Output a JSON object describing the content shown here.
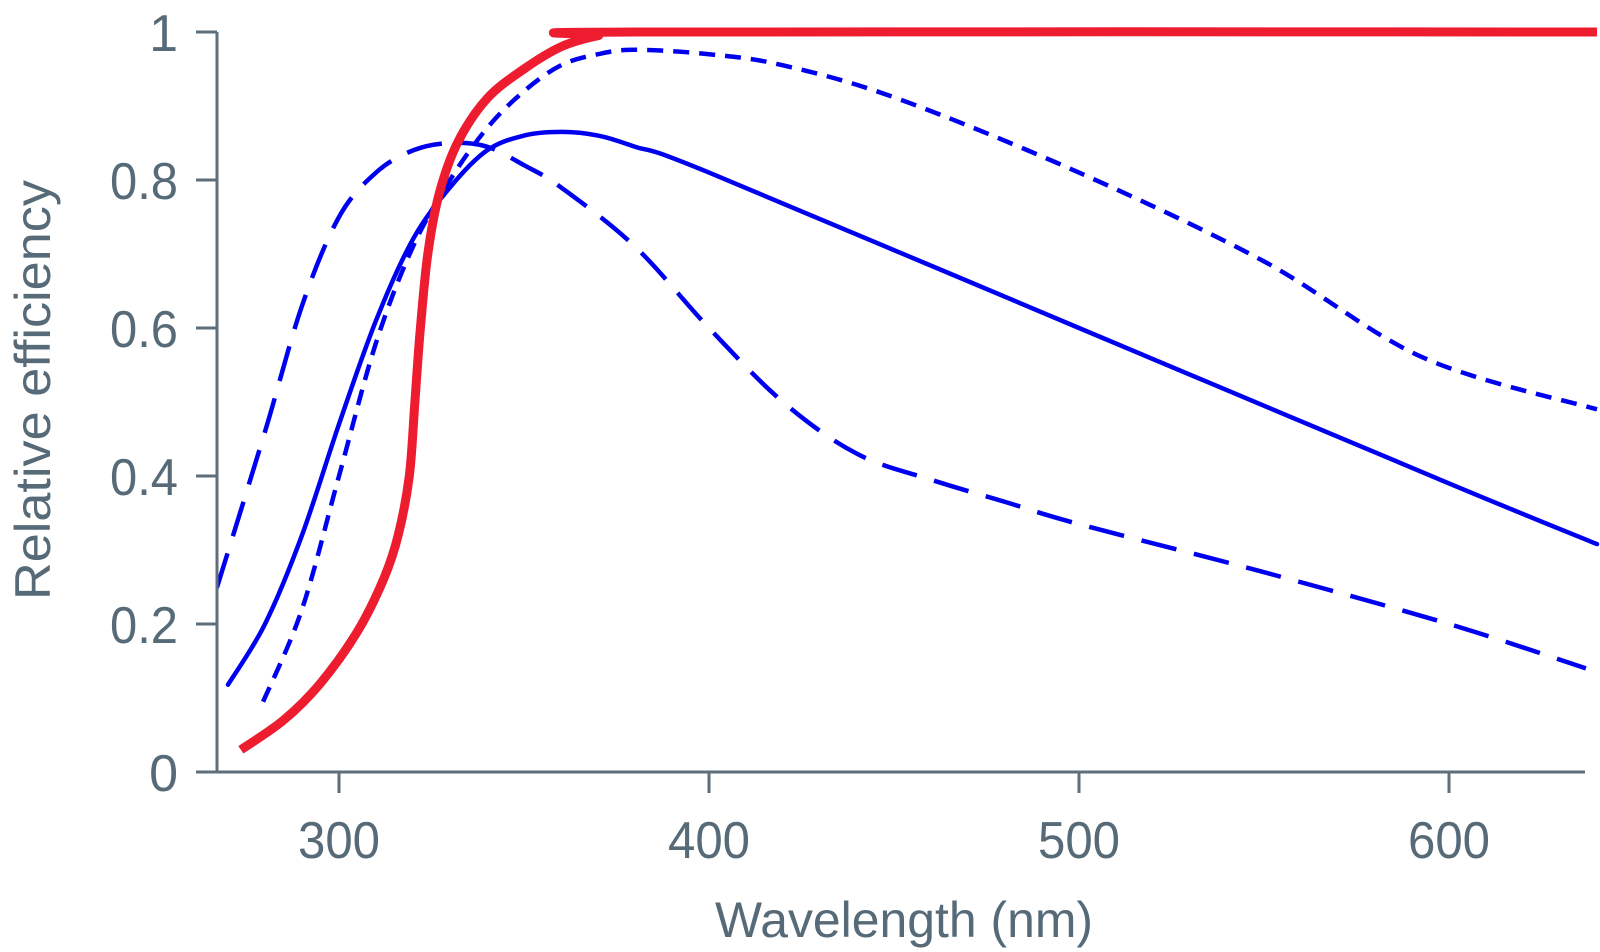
{
  "chart_data": {
    "type": "line",
    "title": "",
    "xlabel": "Wavelength (nm)",
    "ylabel": "Relative efficiency",
    "xlim": [
      267,
      637
    ],
    "ylim": [
      0,
      1
    ],
    "grid": false,
    "legend": "none",
    "x_ticks": [
      {
        "value": 300,
        "label": "300"
      },
      {
        "value": 400,
        "label": "400"
      },
      {
        "value": 500,
        "label": "500"
      },
      {
        "value": 600,
        "label": "600"
      }
    ],
    "y_ticks": [
      {
        "value": 0,
        "label": "0"
      },
      {
        "value": 0.2,
        "label": "0.2"
      },
      {
        "value": 0.4,
        "label": "0.4"
      },
      {
        "value": 0.6,
        "label": "0.6"
      },
      {
        "value": 0.8,
        "label": "0.8"
      },
      {
        "value": 1,
        "label": "1"
      }
    ],
    "axis_color": "#5E6E7A",
    "series": [
      {
        "name": "long-dashed",
        "color": "#0000F0",
        "style": "long-dash",
        "x": [
          267,
          280,
          290,
          300,
          310,
          320,
          330,
          340,
          350,
          360,
          380,
          400,
          420,
          440,
          460,
          480,
          500,
          550,
          600,
          637
        ],
        "values": [
          0.249,
          0.46,
          0.63,
          0.75,
          0.81,
          0.84,
          0.85,
          0.845,
          0.82,
          0.79,
          0.71,
          0.6,
          0.5,
          0.43,
          0.395,
          0.365,
          0.335,
          0.27,
          0.2,
          0.14
        ]
      },
      {
        "name": "solid",
        "color": "#0000F0",
        "style": "solid",
        "x": [
          270,
          280,
          290,
          300,
          310,
          320,
          330,
          340,
          350,
          360,
          370,
          380,
          400,
          500,
          600,
          640
        ],
        "values": [
          0.118,
          0.2,
          0.32,
          0.47,
          0.61,
          0.72,
          0.79,
          0.84,
          0.86,
          0.865,
          0.86,
          0.845,
          0.81,
          0.6,
          0.39,
          0.308
        ]
      },
      {
        "name": "short-dashed",
        "color": "#0000F0",
        "style": "short-dash",
        "x": [
          279.5,
          290,
          300,
          310,
          320,
          330,
          340,
          350,
          360,
          370,
          380,
          400,
          420,
          451,
          500,
          550,
          593,
          640
        ],
        "values": [
          0.095,
          0.22,
          0.4,
          0.58,
          0.71,
          0.8,
          0.87,
          0.92,
          0.955,
          0.97,
          0.976,
          0.97,
          0.955,
          0.91,
          0.81,
          0.69,
          0.56,
          0.49
        ]
      },
      {
        "name": "red",
        "color": "#ED1C2E",
        "style": "thick",
        "x": [
          273.5,
          285,
          295,
          305,
          312,
          316,
          319,
          320.5,
          322,
          324,
          327,
          332,
          340,
          350,
          360,
          370,
          380,
          640
        ],
        "values": [
          0.03,
          0.07,
          0.12,
          0.19,
          0.26,
          0.32,
          0.4,
          0.5,
          0.6,
          0.7,
          0.78,
          0.85,
          0.91,
          0.95,
          0.98,
          0.995,
          1.0,
          1.0
        ]
      }
    ]
  }
}
